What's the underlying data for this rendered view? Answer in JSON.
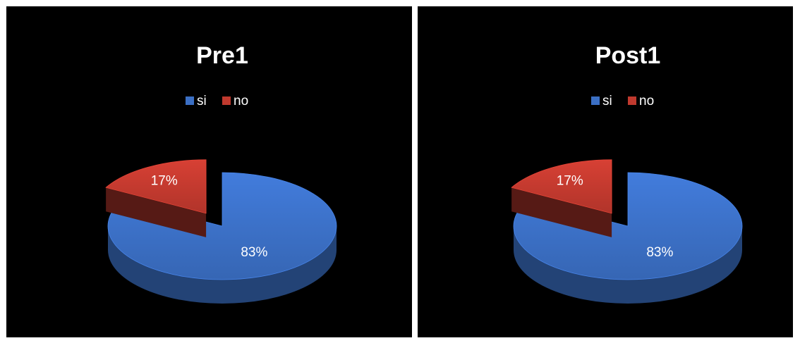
{
  "chart_data": [
    {
      "type": "pie",
      "title": "Pre1",
      "legend_position": "top",
      "categories": [
        "si",
        "no"
      ],
      "values": [
        83,
        17
      ],
      "labels": [
        "83%",
        "17%"
      ],
      "colors": [
        "#3B6FC4",
        "#C0392E"
      ],
      "exploded": [
        "no"
      ],
      "style": "3d"
    },
    {
      "type": "pie",
      "title": "Post1",
      "legend_position": "top",
      "categories": [
        "si",
        "no"
      ],
      "values": [
        83,
        17
      ],
      "labels": [
        "83%",
        "17%"
      ],
      "colors": [
        "#3B6FC4",
        "#C0392E"
      ],
      "exploded": [
        "no"
      ],
      "style": "3d"
    }
  ]
}
